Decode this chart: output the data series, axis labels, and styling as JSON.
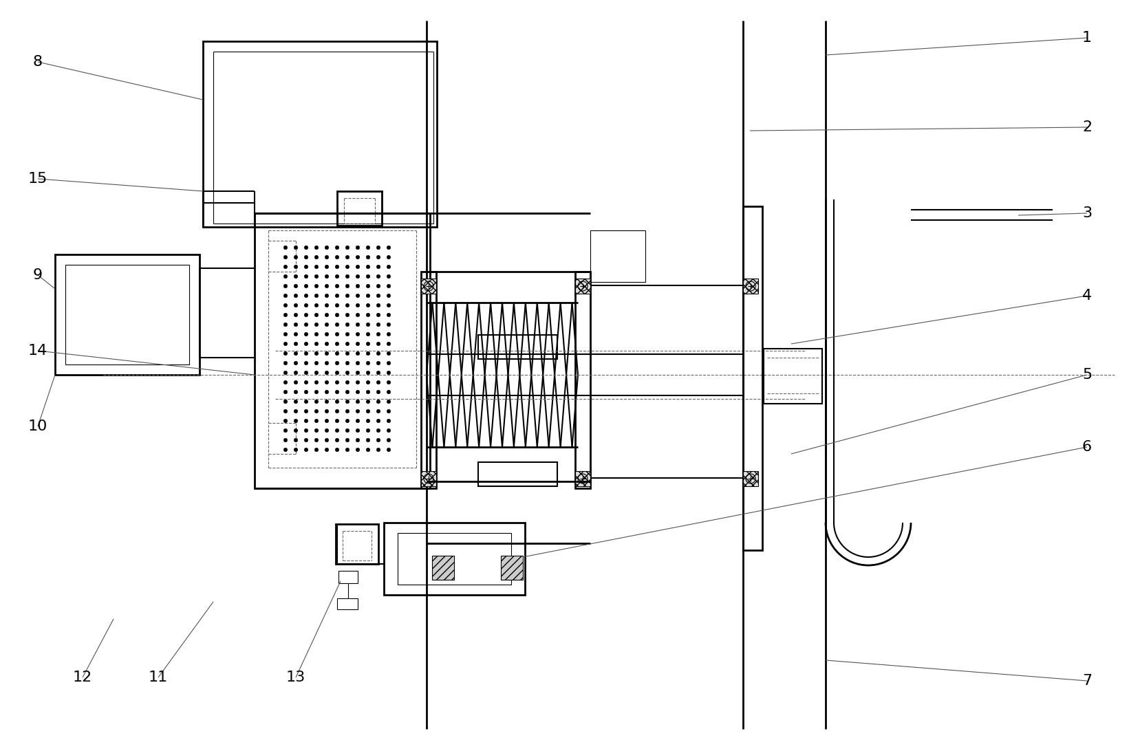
{
  "bg_color": "#ffffff",
  "line_color": "#000000",
  "dashed_color": "#666666",
  "figsize": [
    16.57,
    10.92
  ],
  "dpi": 100,
  "leaders": [
    [
      "1",
      1580,
      55,
      1200,
      80
    ],
    [
      "2",
      1580,
      185,
      1090,
      190
    ],
    [
      "3",
      1580,
      310,
      1480,
      313
    ],
    [
      "4",
      1580,
      430,
      1150,
      500
    ],
    [
      "5",
      1580,
      545,
      1150,
      660
    ],
    [
      "6",
      1580,
      650,
      760,
      810
    ],
    [
      "7",
      1580,
      990,
      1200,
      960
    ],
    [
      "8",
      55,
      90,
      295,
      145
    ],
    [
      "9",
      55,
      400,
      80,
      420
    ],
    [
      "10",
      55,
      620,
      80,
      545
    ],
    [
      "11",
      230,
      985,
      310,
      875
    ],
    [
      "12",
      120,
      985,
      165,
      900
    ],
    [
      "13",
      430,
      985,
      495,
      845
    ],
    [
      "14",
      55,
      510,
      370,
      545
    ],
    [
      "15",
      55,
      260,
      295,
      278
    ]
  ]
}
